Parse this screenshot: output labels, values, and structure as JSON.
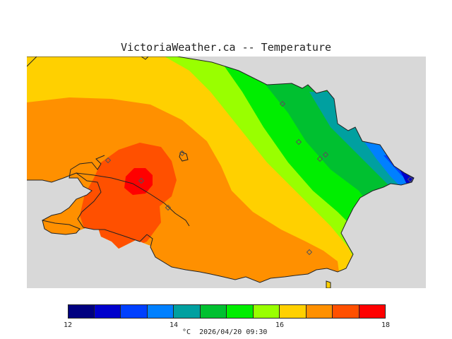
{
  "title": "VictoriaWeather.ca -- Temperature",
  "colors": {
    "water": "#d8d8d8",
    "coast": "#222222",
    "band_12_125": "#000080",
    "band_125_13": "#0000cc",
    "band_13_135": "#0040ff",
    "band_135_14": "#0080ff",
    "band_14_145": "#00a0a0",
    "band_145_15": "#00c030",
    "band_15_155": "#00ee00",
    "band_155_16": "#99ff00",
    "band_16_165": "#ffd000",
    "band_165_17": "#ff9000",
    "band_17_175": "#ff5000",
    "band_175_18": "#ff0000"
  },
  "legend": {
    "unit": "°C",
    "timestamp": "2026/04/20 09:30",
    "ticks": [
      "12",
      "14",
      "16",
      "18"
    ],
    "bands": [
      {
        "from": 12,
        "to": 12.5,
        "color": "#000080"
      },
      {
        "from": 12.5,
        "to": 13,
        "color": "#0000cc"
      },
      {
        "from": 13,
        "to": 13.5,
        "color": "#0040ff"
      },
      {
        "from": 13.5,
        "to": 14,
        "color": "#0080ff"
      },
      {
        "from": 14,
        "to": 14.5,
        "color": "#00a0a0"
      },
      {
        "from": 14.5,
        "to": 15,
        "color": "#00c030"
      },
      {
        "from": 15,
        "to": 15.5,
        "color": "#00ee00"
      },
      {
        "from": 15.5,
        "to": 16,
        "color": "#99ff00"
      },
      {
        "from": 16,
        "to": 16.5,
        "color": "#ffd000"
      },
      {
        "from": 16.5,
        "to": 17,
        "color": "#ff9000"
      },
      {
        "from": 17,
        "to": 17.5,
        "color": "#ff5000"
      },
      {
        "from": 17.5,
        "to": 18,
        "color": "#ff0000"
      }
    ]
  },
  "station_icon": "diamond-marker-icon"
}
